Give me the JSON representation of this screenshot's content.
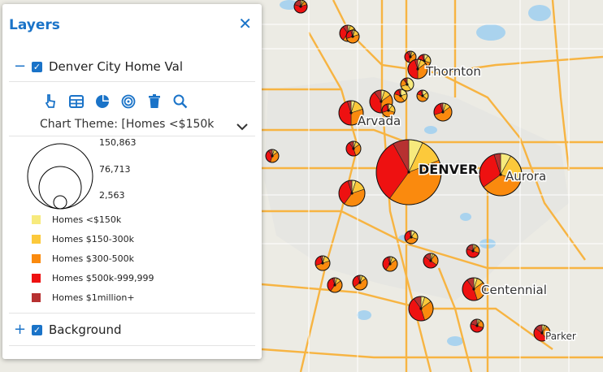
{
  "panel": {
    "title": "Layers",
    "close_icon": "close-icon",
    "layers": [
      {
        "toggle": "−",
        "checked": "✓",
        "name": "Denver City Home Val"
      },
      {
        "toggle": "+",
        "checked": "✓",
        "name": "Background"
      }
    ],
    "tools": [
      "pointer-icon",
      "table-icon",
      "pie-chart-icon",
      "target-icon",
      "trash-icon",
      "search-icon"
    ],
    "chart_theme": "Chart Theme: [Homes <$150k] ...",
    "size_legend": [
      "150,863",
      "76,713",
      "2,563"
    ],
    "legend": [
      {
        "label": "Homes <$150k",
        "color": "#f7ea7d"
      },
      {
        "label": "Homes $150-300k",
        "color": "#fcc93b"
      },
      {
        "label": "Homes $300-500k",
        "color": "#fa8a0e"
      },
      {
        "label": "Homes $500k-999,999",
        "color": "#ee1111"
      },
      {
        "label": "Homes $1million+",
        "color": "#b73131"
      }
    ]
  },
  "map": {
    "places": [
      "Thornton",
      "Arvada",
      "DENVER",
      "Aurora",
      "Centennial",
      "Parker"
    ]
  }
}
